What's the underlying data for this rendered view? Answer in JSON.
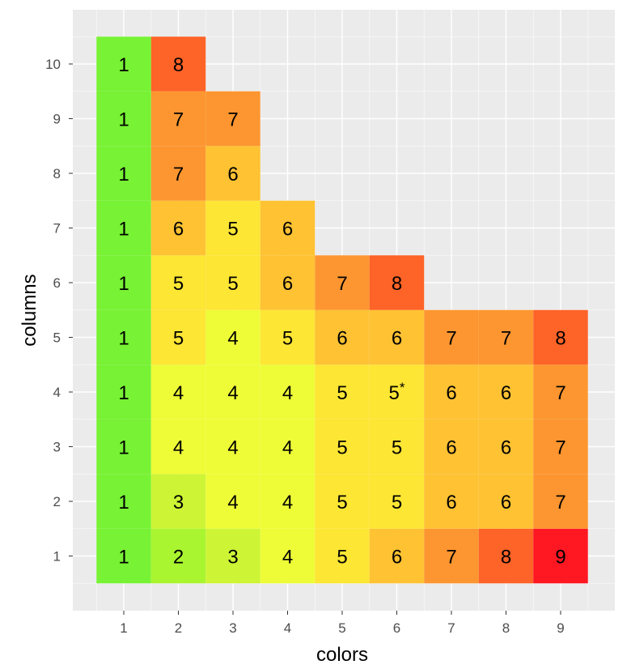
{
  "chart_data": {
    "type": "heatmap",
    "title": "",
    "xlabel": "colors",
    "ylabel": "columns",
    "x_categories": [
      "1",
      "2",
      "3",
      "4",
      "5",
      "6",
      "7",
      "8",
      "9"
    ],
    "y_categories": [
      "1",
      "2",
      "3",
      "4",
      "5",
      "6",
      "7",
      "8",
      "9",
      "10"
    ],
    "grid": true,
    "legend": "none",
    "cells": [
      {
        "x": 1,
        "y": 1,
        "value": 1,
        "label": "1",
        "color": "#78f234"
      },
      {
        "x": 2,
        "y": 1,
        "value": 2,
        "label": "2",
        "color": "#a9f530"
      },
      {
        "x": 3,
        "y": 1,
        "value": 3,
        "label": "3",
        "color": "#cdf535"
      },
      {
        "x": 4,
        "y": 1,
        "value": 4,
        "label": "4",
        "color": "#eefc37"
      },
      {
        "x": 5,
        "y": 1,
        "value": 5,
        "label": "5",
        "color": "#fde634"
      },
      {
        "x": 6,
        "y": 1,
        "value": 6,
        "label": "6",
        "color": "#fec233"
      },
      {
        "x": 7,
        "y": 1,
        "value": 7,
        "label": "7",
        "color": "#fd9630"
      },
      {
        "x": 8,
        "y": 1,
        "value": 8,
        "label": "8",
        "color": "#fe6327"
      },
      {
        "x": 9,
        "y": 1,
        "value": 9,
        "label": "9",
        "color": "#ff1722"
      },
      {
        "x": 1,
        "y": 2,
        "value": 1,
        "label": "1",
        "color": "#78f234"
      },
      {
        "x": 2,
        "y": 2,
        "value": 3,
        "label": "3",
        "color": "#cdf535"
      },
      {
        "x": 3,
        "y": 2,
        "value": 4,
        "label": "4",
        "color": "#eefc37"
      },
      {
        "x": 4,
        "y": 2,
        "value": 4,
        "label": "4",
        "color": "#eefc37"
      },
      {
        "x": 5,
        "y": 2,
        "value": 5,
        "label": "5",
        "color": "#fde634"
      },
      {
        "x": 6,
        "y": 2,
        "value": 5,
        "label": "5",
        "color": "#fde634"
      },
      {
        "x": 7,
        "y": 2,
        "value": 6,
        "label": "6",
        "color": "#fec233"
      },
      {
        "x": 8,
        "y": 2,
        "value": 6,
        "label": "6",
        "color": "#fec233"
      },
      {
        "x": 9,
        "y": 2,
        "value": 7,
        "label": "7",
        "color": "#fd9630"
      },
      {
        "x": 1,
        "y": 3,
        "value": 1,
        "label": "1",
        "color": "#78f234"
      },
      {
        "x": 2,
        "y": 3,
        "value": 4,
        "label": "4",
        "color": "#eefc37"
      },
      {
        "x": 3,
        "y": 3,
        "value": 4,
        "label": "4",
        "color": "#eefc37"
      },
      {
        "x": 4,
        "y": 3,
        "value": 4,
        "label": "4",
        "color": "#eefc37"
      },
      {
        "x": 5,
        "y": 3,
        "value": 5,
        "label": "5",
        "color": "#fde634"
      },
      {
        "x": 6,
        "y": 3,
        "value": 5,
        "label": "5",
        "color": "#fde634"
      },
      {
        "x": 7,
        "y": 3,
        "value": 6,
        "label": "6",
        "color": "#fec233"
      },
      {
        "x": 8,
        "y": 3,
        "value": 6,
        "label": "6",
        "color": "#fec233"
      },
      {
        "x": 9,
        "y": 3,
        "value": 7,
        "label": "7",
        "color": "#fd9630"
      },
      {
        "x": 1,
        "y": 4,
        "value": 1,
        "label": "1",
        "color": "#78f234"
      },
      {
        "x": 2,
        "y": 4,
        "value": 4,
        "label": "4",
        "color": "#eefc37"
      },
      {
        "x": 3,
        "y": 4,
        "value": 4,
        "label": "4",
        "color": "#eefc37"
      },
      {
        "x": 4,
        "y": 4,
        "value": 4,
        "label": "4",
        "color": "#eefc37"
      },
      {
        "x": 5,
        "y": 4,
        "value": 5,
        "label": "5",
        "color": "#fde634"
      },
      {
        "x": 6,
        "y": 4,
        "value": 5,
        "label": "5*",
        "color": "#fde634"
      },
      {
        "x": 7,
        "y": 4,
        "value": 6,
        "label": "6",
        "color": "#fec233"
      },
      {
        "x": 8,
        "y": 4,
        "value": 6,
        "label": "6",
        "color": "#fec233"
      },
      {
        "x": 9,
        "y": 4,
        "value": 7,
        "label": "7",
        "color": "#fd9630"
      },
      {
        "x": 1,
        "y": 5,
        "value": 1,
        "label": "1",
        "color": "#78f234"
      },
      {
        "x": 2,
        "y": 5,
        "value": 5,
        "label": "5",
        "color": "#fde634"
      },
      {
        "x": 3,
        "y": 5,
        "value": 4,
        "label": "4",
        "color": "#eefc37"
      },
      {
        "x": 4,
        "y": 5,
        "value": 5,
        "label": "5",
        "color": "#fde634"
      },
      {
        "x": 5,
        "y": 5,
        "value": 6,
        "label": "6",
        "color": "#fec233"
      },
      {
        "x": 6,
        "y": 5,
        "value": 6,
        "label": "6",
        "color": "#fec233"
      },
      {
        "x": 7,
        "y": 5,
        "value": 7,
        "label": "7",
        "color": "#fd9630"
      },
      {
        "x": 8,
        "y": 5,
        "value": 7,
        "label": "7",
        "color": "#fd9630"
      },
      {
        "x": 9,
        "y": 5,
        "value": 8,
        "label": "8",
        "color": "#fe6327"
      },
      {
        "x": 1,
        "y": 6,
        "value": 1,
        "label": "1",
        "color": "#78f234"
      },
      {
        "x": 2,
        "y": 6,
        "value": 5,
        "label": "5",
        "color": "#fde634"
      },
      {
        "x": 3,
        "y": 6,
        "value": 5,
        "label": "5",
        "color": "#fde634"
      },
      {
        "x": 4,
        "y": 6,
        "value": 6,
        "label": "6",
        "color": "#fec233"
      },
      {
        "x": 5,
        "y": 6,
        "value": 7,
        "label": "7",
        "color": "#fd9630"
      },
      {
        "x": 6,
        "y": 6,
        "value": 8,
        "label": "8",
        "color": "#fe6327"
      },
      {
        "x": 1,
        "y": 7,
        "value": 1,
        "label": "1",
        "color": "#78f234"
      },
      {
        "x": 2,
        "y": 7,
        "value": 6,
        "label": "6",
        "color": "#fec233"
      },
      {
        "x": 3,
        "y": 7,
        "value": 5,
        "label": "5",
        "color": "#fde634"
      },
      {
        "x": 4,
        "y": 7,
        "value": 6,
        "label": "6",
        "color": "#fec233"
      },
      {
        "x": 1,
        "y": 8,
        "value": 1,
        "label": "1",
        "color": "#78f234"
      },
      {
        "x": 2,
        "y": 8,
        "value": 7,
        "label": "7",
        "color": "#fd9630"
      },
      {
        "x": 3,
        "y": 8,
        "value": 6,
        "label": "6",
        "color": "#fec233"
      },
      {
        "x": 1,
        "y": 9,
        "value": 1,
        "label": "1",
        "color": "#78f234"
      },
      {
        "x": 2,
        "y": 9,
        "value": 7,
        "label": "7",
        "color": "#fd9630"
      },
      {
        "x": 3,
        "y": 9,
        "value": 7,
        "label": "7",
        "color": "#fd9630"
      },
      {
        "x": 1,
        "y": 10,
        "value": 1,
        "label": "1",
        "color": "#78f234"
      },
      {
        "x": 2,
        "y": 10,
        "value": 8,
        "label": "8",
        "color": "#fe6327"
      }
    ],
    "colors": {
      "panel_background": "#ebebeb",
      "grid_major": "#ffffff",
      "tick_text": "#4d4d4d",
      "axis_text": "#000000"
    }
  }
}
